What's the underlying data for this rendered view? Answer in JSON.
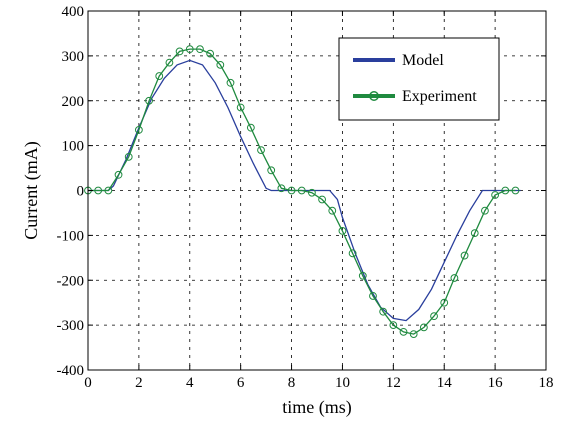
{
  "chart_data": {
    "type": "line",
    "title": "",
    "xlabel": "time (ms)",
    "ylabel": "Current (mA)",
    "xlim": [
      0,
      18
    ],
    "ylim": [
      -400,
      400
    ],
    "xticks": [
      0,
      2,
      4,
      6,
      8,
      10,
      12,
      14,
      16,
      18
    ],
    "yticks": [
      -400,
      -300,
      -200,
      -100,
      0,
      100,
      200,
      300,
      400
    ],
    "grid": true,
    "legend_position": "top-right",
    "series": [
      {
        "name": "Model",
        "color": "#2a3f9d",
        "marker": "none",
        "x": [
          0,
          0.8,
          1.0,
          1.5,
          2.0,
          2.5,
          3.0,
          3.5,
          4.0,
          4.5,
          5.0,
          5.5,
          6.0,
          6.5,
          7.0,
          7.2,
          9.5,
          9.8,
          10.0,
          10.5,
          11.0,
          11.5,
          12.0,
          12.5,
          13.0,
          13.5,
          14.0,
          14.5,
          15.0,
          15.5,
          17.0
        ],
        "y": [
          0,
          0,
          10,
          70,
          140,
          205,
          250,
          280,
          290,
          280,
          240,
          185,
          120,
          60,
          5,
          0,
          0,
          -20,
          -60,
          -140,
          -210,
          -260,
          -285,
          -290,
          -265,
          -220,
          -160,
          -100,
          -45,
          0,
          0
        ]
      },
      {
        "name": "Experiment",
        "color": "#1f8a3f",
        "marker": "circle",
        "x": [
          0,
          0.4,
          0.8,
          1.2,
          1.6,
          2.0,
          2.4,
          2.8,
          3.2,
          3.6,
          4.0,
          4.4,
          4.8,
          5.2,
          5.6,
          6.0,
          6.4,
          6.8,
          7.2,
          7.6,
          8.0,
          8.4,
          8.8,
          9.2,
          9.6,
          10.0,
          10.4,
          10.8,
          11.2,
          11.6,
          12.0,
          12.4,
          12.8,
          13.2,
          13.6,
          14.0,
          14.4,
          14.8,
          15.2,
          15.6,
          16.0,
          16.4,
          16.8
        ],
        "y": [
          0,
          0,
          0,
          35,
          75,
          135,
          200,
          255,
          285,
          310,
          315,
          315,
          305,
          280,
          240,
          185,
          140,
          90,
          45,
          5,
          0,
          0,
          -5,
          -20,
          -45,
          -90,
          -140,
          -190,
          -235,
          -270,
          -300,
          -315,
          -320,
          -305,
          -280,
          -250,
          -195,
          -145,
          -95,
          -45,
          -10,
          0,
          0
        ]
      }
    ]
  }
}
